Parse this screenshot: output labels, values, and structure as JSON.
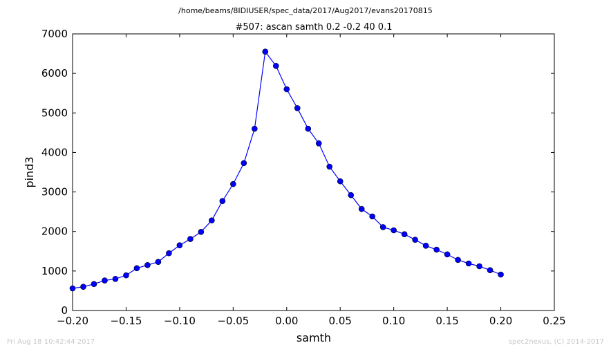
{
  "page": {
    "suptitle": "/home/beams/8IDIUSER/spec_data/2017/Aug2017/evans20170815",
    "footer_left": "Fri Aug 18 10:42:44 2017",
    "footer_right": "spec2nexus, (C) 2014-2017"
  },
  "chart_data": {
    "type": "line",
    "title": "#507: ascan  samth 0.2 -0.2  40 0.1",
    "xlabel": "samth",
    "ylabel": "pind3",
    "xlim": [
      -0.2,
      0.25
    ],
    "ylim": [
      0,
      7000
    ],
    "xticks": [
      -0.2,
      -0.15,
      -0.1,
      -0.05,
      0.0,
      0.05,
      0.1,
      0.15,
      0.2,
      0.25
    ],
    "xtick_labels": [
      "−0.20",
      "−0.15",
      "−0.10",
      "−0.05",
      "0.00",
      "0.05",
      "0.10",
      "0.15",
      "0.20",
      "0.25"
    ],
    "yticks": [
      0,
      1000,
      2000,
      3000,
      4000,
      5000,
      6000,
      7000
    ],
    "ytick_labels": [
      "0",
      "1000",
      "2000",
      "3000",
      "4000",
      "5000",
      "6000",
      "7000"
    ],
    "grid": false,
    "color": "#0000ff",
    "x": [
      -0.2,
      -0.19,
      -0.18,
      -0.17,
      -0.16,
      -0.15,
      -0.14,
      -0.13,
      -0.12,
      -0.11,
      -0.1,
      -0.09,
      -0.08,
      -0.07,
      -0.06,
      -0.05,
      -0.04,
      -0.03,
      -0.02,
      -0.01,
      0.0,
      0.01,
      0.02,
      0.03,
      0.04,
      0.05,
      0.06,
      0.07,
      0.08,
      0.09,
      0.1,
      0.11,
      0.12,
      0.13,
      0.14,
      0.15,
      0.16,
      0.17,
      0.18,
      0.19,
      0.2
    ],
    "y": [
      560,
      600,
      670,
      760,
      800,
      890,
      1070,
      1150,
      1230,
      1450,
      1650,
      1810,
      1990,
      2280,
      2770,
      3200,
      3730,
      4600,
      6550,
      6190,
      5600,
      5120,
      4600,
      4230,
      3640,
      3270,
      2920,
      2570,
      2380,
      2110,
      2030,
      1930,
      1790,
      1640,
      1540,
      1420,
      1280,
      1190,
      1120,
      1020,
      910
    ]
  }
}
